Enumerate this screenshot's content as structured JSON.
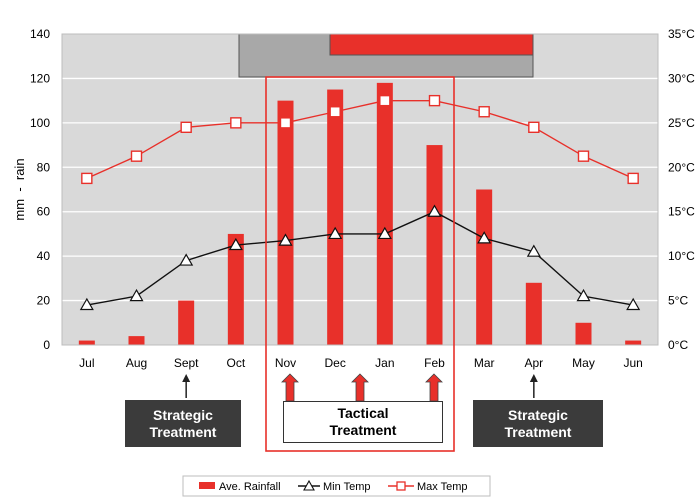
{
  "chart_data": {
    "type": "bar+line",
    "categories": [
      "Jul",
      "Aug",
      "Sept",
      "Oct",
      "Nov",
      "Dec",
      "Jan",
      "Feb",
      "Mar",
      "Apr",
      "May",
      "Jun"
    ],
    "y_left": {
      "label": "mm  -  rain",
      "range": [
        0,
        140
      ],
      "ticks": [
        0,
        20,
        40,
        60,
        80,
        100,
        120,
        140
      ]
    },
    "y_right": {
      "range_celsius": [
        0,
        35
      ],
      "ticks": [
        "0°C",
        "5°C",
        "10°C",
        "15°C",
        "20°C",
        "25°C",
        "30°C",
        "35°C"
      ]
    },
    "series": [
      {
        "name": "Ave. Rainfall",
        "kind": "bar",
        "axis": "left",
        "color": "#e8302a",
        "values": [
          2,
          4,
          20,
          50,
          110,
          115,
          118,
          90,
          70,
          28,
          10,
          2
        ]
      },
      {
        "name": "Min Temp",
        "kind": "line",
        "axis": "left",
        "marker": "triangle",
        "color": "#111111",
        "values": [
          18,
          22,
          38,
          45,
          47,
          50,
          50,
          60,
          48,
          42,
          22,
          18
        ]
      },
      {
        "name": "Max Temp",
        "kind": "line",
        "axis": "left",
        "marker": "square",
        "color": "#e8302a",
        "values": [
          75,
          85,
          98,
          100,
          100,
          105,
          110,
          110,
          105,
          98,
          85,
          75
        ]
      }
    ],
    "legend": {
      "position": "bottom",
      "items": [
        "Ave. Rainfall",
        "Min Temp",
        "Max Temp"
      ]
    },
    "colors": {
      "plot_bg": "#d9d9d9",
      "grid": "#ffffff",
      "accent": "#e8302a",
      "gray_band": "#a8a8a8",
      "dark_box": "#3b3b3b"
    }
  },
  "annotations": {
    "strategic_left": "Strategic\nTreatment",
    "tactical": "Tactical\nTreatment",
    "strategic_right": "Strategic\nTreatment"
  }
}
